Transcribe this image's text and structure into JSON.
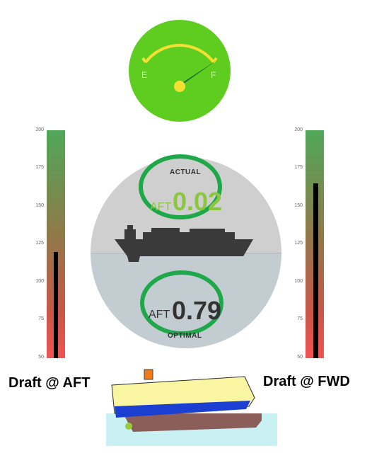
{
  "fuel_gauge": {
    "empty_label": "E",
    "full_label": "F",
    "colors": {
      "face": "#5fcc20",
      "arc": "#f4e033",
      "needle": "#1c6b2c"
    }
  },
  "scale_ticks": [
    "200",
    "175",
    "150",
    "125",
    "100",
    "75",
    "50"
  ],
  "scale_aft": {
    "reading": 120,
    "min": 50,
    "max": 200
  },
  "scale_fwd": {
    "reading": 165,
    "min": 50,
    "max": 200
  },
  "actual": {
    "caption": "ACTUAL",
    "prefix": "AFT",
    "value": "0.02",
    "color": "#8cc63f"
  },
  "optimal": {
    "caption": "OPTIMAL",
    "prefix": "AFT",
    "value": "0.79",
    "color": "#333333"
  },
  "labels": {
    "draft_aft": "Draft @ AFT",
    "draft_fwd": "Draft @ FWD"
  },
  "colors": {
    "ring": "#1fa84a",
    "hull_top": "#f9f5a0",
    "hull_stripe": "#1a3fd1",
    "water": "#c9f1f4"
  }
}
